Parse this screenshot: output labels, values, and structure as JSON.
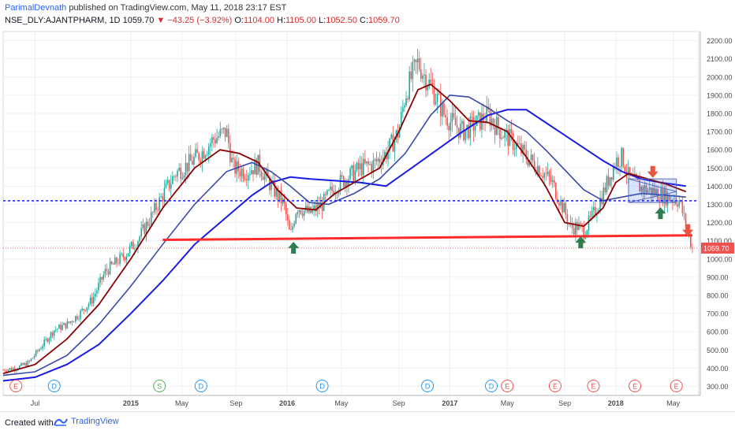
{
  "header": {
    "author": "ParimalDevnath",
    "published": " published on TradingView.com, May 11, 2018 23:17 EST",
    "symbol": "NSE_DLY:AJANTPHARM, 1D",
    "last": "1059.70",
    "change": "▼ −43.25 (−3.92%)",
    "o_label": "O:",
    "o_val": "1104.00",
    "h_label": "H:",
    "h_val": "1105.00",
    "l_label": "L:",
    "l_val": "1052.50",
    "c_label": "C:",
    "c_val": "1059.70"
  },
  "footer": {
    "created": "Created with",
    "brand": "TradingView"
  },
  "colors": {
    "up": "#26a69a",
    "down": "#ef5350",
    "ma_fast": "#8b0000",
    "ma_mid": "#3949ab",
    "ma_slow": "#1a1ae6",
    "support": "#ff2b2b",
    "level": "#1a1ae6",
    "grid": "#eef0f4",
    "axis_text": "#4a4a4a",
    "price_tag_bg": "#ef5350"
  },
  "chart_data": {
    "type": "candlestick",
    "ylim": [
      250,
      2250
    ],
    "y_ticks": [
      "300.00",
      "400.00",
      "500.00",
      "600.00",
      "700.00",
      "800.00",
      "900.00",
      "1000.00",
      "1100.00",
      "1200.00",
      "1300.00",
      "1400.00",
      "1500.00",
      "1600.00",
      "1700.00",
      "1800.00",
      "1900.00",
      "2000.00",
      "2100.00",
      "2200.00"
    ],
    "x_ticks": [
      {
        "label": "Jul",
        "t": 0.05
      },
      {
        "label": "2015",
        "t": 0.2
      },
      {
        "label": "May",
        "t": 0.28
      },
      {
        "label": "Sep",
        "t": 0.365
      },
      {
        "label": "2016",
        "t": 0.445
      },
      {
        "label": "May",
        "t": 0.53
      },
      {
        "label": "Sep",
        "t": 0.62
      },
      {
        "label": "2017",
        "t": 0.7
      },
      {
        "label": "May",
        "t": 0.79
      },
      {
        "label": "Sep",
        "t": 0.88
      },
      {
        "label": "2018",
        "t": 0.96
      },
      {
        "label": "May",
        "t": 1.05
      }
    ],
    "close_path": [
      [
        0.0,
        390
      ],
      [
        0.02,
        400
      ],
      [
        0.04,
        430
      ],
      [
        0.06,
        520
      ],
      [
        0.08,
        610
      ],
      [
        0.1,
        640
      ],
      [
        0.12,
        700
      ],
      [
        0.14,
        780
      ],
      [
        0.16,
        930
      ],
      [
        0.17,
        960
      ],
      [
        0.19,
        1020
      ],
      [
        0.21,
        1100
      ],
      [
        0.23,
        1220
      ],
      [
        0.25,
        1350
      ],
      [
        0.27,
        1470
      ],
      [
        0.29,
        1520
      ],
      [
        0.31,
        1580
      ],
      [
        0.33,
        1660
      ],
      [
        0.35,
        1700
      ],
      [
        0.36,
        1500
      ],
      [
        0.38,
        1480
      ],
      [
        0.4,
        1520
      ],
      [
        0.42,
        1400
      ],
      [
        0.44,
        1300
      ],
      [
        0.45,
        1120
      ],
      [
        0.46,
        1290
      ],
      [
        0.48,
        1250
      ],
      [
        0.5,
        1300
      ],
      [
        0.52,
        1400
      ],
      [
        0.54,
        1450
      ],
      [
        0.56,
        1500
      ],
      [
        0.58,
        1520
      ],
      [
        0.6,
        1580
      ],
      [
        0.62,
        1700
      ],
      [
        0.63,
        1900
      ],
      [
        0.64,
        2000
      ],
      [
        0.65,
        2080
      ],
      [
        0.66,
        2010
      ],
      [
        0.67,
        1950
      ],
      [
        0.68,
        1880
      ],
      [
        0.69,
        1800
      ],
      [
        0.7,
        1760
      ],
      [
        0.72,
        1700
      ],
      [
        0.74,
        1740
      ],
      [
        0.76,
        1790
      ],
      [
        0.78,
        1700
      ],
      [
        0.8,
        1640
      ],
      [
        0.82,
        1560
      ],
      [
        0.84,
        1500
      ],
      [
        0.86,
        1420
      ],
      [
        0.88,
        1260
      ],
      [
        0.89,
        1170
      ],
      [
        0.9,
        1180
      ],
      [
        0.91,
        1150
      ],
      [
        0.92,
        1210
      ],
      [
        0.93,
        1280
      ],
      [
        0.94,
        1360
      ],
      [
        0.95,
        1450
      ],
      [
        0.96,
        1540
      ],
      [
        0.97,
        1560
      ],
      [
        0.98,
        1450
      ],
      [
        0.99,
        1420
      ],
      [
        1.0,
        1390
      ],
      [
        1.02,
        1370
      ],
      [
        1.04,
        1340
      ],
      [
        1.06,
        1320
      ],
      [
        1.07,
        1180
      ],
      [
        1.08,
        1059.7
      ]
    ],
    "ma_fast": [
      [
        0.0,
        370
      ],
      [
        0.05,
        420
      ],
      [
        0.1,
        560
      ],
      [
        0.15,
        750
      ],
      [
        0.2,
        1000
      ],
      [
        0.25,
        1280
      ],
      [
        0.3,
        1500
      ],
      [
        0.34,
        1600
      ],
      [
        0.37,
        1580
      ],
      [
        0.4,
        1530
      ],
      [
        0.43,
        1380
      ],
      [
        0.46,
        1280
      ],
      [
        0.49,
        1270
      ],
      [
        0.52,
        1360
      ],
      [
        0.56,
        1440
      ],
      [
        0.59,
        1500
      ],
      [
        0.62,
        1700
      ],
      [
        0.65,
        1930
      ],
      [
        0.67,
        1960
      ],
      [
        0.7,
        1870
      ],
      [
        0.73,
        1760
      ],
      [
        0.76,
        1750
      ],
      [
        0.79,
        1700
      ],
      [
        0.82,
        1560
      ],
      [
        0.85,
        1400
      ],
      [
        0.88,
        1200
      ],
      [
        0.91,
        1180
      ],
      [
        0.94,
        1280
      ],
      [
        0.96,
        1420
      ],
      [
        0.98,
        1470
      ],
      [
        1.01,
        1440
      ],
      [
        1.04,
        1410
      ],
      [
        1.07,
        1370
      ]
    ],
    "ma_mid": [
      [
        0.0,
        360
      ],
      [
        0.05,
        380
      ],
      [
        0.1,
        470
      ],
      [
        0.15,
        640
      ],
      [
        0.2,
        850
      ],
      [
        0.25,
        1080
      ],
      [
        0.3,
        1300
      ],
      [
        0.35,
        1480
      ],
      [
        0.39,
        1530
      ],
      [
        0.42,
        1480
      ],
      [
        0.45,
        1400
      ],
      [
        0.48,
        1310
      ],
      [
        0.51,
        1300
      ],
      [
        0.55,
        1360
      ],
      [
        0.59,
        1440
      ],
      [
        0.63,
        1580
      ],
      [
        0.67,
        1790
      ],
      [
        0.7,
        1900
      ],
      [
        0.73,
        1890
      ],
      [
        0.76,
        1830
      ],
      [
        0.79,
        1760
      ],
      [
        0.82,
        1700
      ],
      [
        0.85,
        1600
      ],
      [
        0.88,
        1490
      ],
      [
        0.91,
        1380
      ],
      [
        0.94,
        1320
      ],
      [
        0.97,
        1340
      ],
      [
        1.0,
        1360
      ],
      [
        1.04,
        1350
      ],
      [
        1.07,
        1340
      ]
    ],
    "ma_slow": [
      [
        0.0,
        330
      ],
      [
        0.05,
        350
      ],
      [
        0.1,
        420
      ],
      [
        0.15,
        530
      ],
      [
        0.2,
        700
      ],
      [
        0.25,
        880
      ],
      [
        0.3,
        1080
      ],
      [
        0.35,
        1230
      ],
      [
        0.39,
        1350
      ],
      [
        0.42,
        1420
      ],
      [
        0.45,
        1450
      ],
      [
        0.48,
        1440
      ],
      [
        0.52,
        1430
      ],
      [
        0.56,
        1420
      ],
      [
        0.6,
        1400
      ],
      [
        0.64,
        1500
      ],
      [
        0.68,
        1600
      ],
      [
        0.72,
        1700
      ],
      [
        0.76,
        1790
      ],
      [
        0.79,
        1820
      ],
      [
        0.82,
        1820
      ],
      [
        0.85,
        1750
      ],
      [
        0.88,
        1680
      ],
      [
        0.91,
        1610
      ],
      [
        0.94,
        1540
      ],
      [
        0.97,
        1480
      ],
      [
        1.0,
        1440
      ],
      [
        1.03,
        1420
      ],
      [
        1.07,
        1400
      ]
    ],
    "support_line": [
      [
        0.25,
        1105
      ],
      [
        1.08,
        1130
      ]
    ],
    "level_line": 1320,
    "last_price_line": 1059.7,
    "last_price": "1059.70",
    "arrows_up": [
      [
        0.455,
        1055
      ],
      [
        0.905,
        1085
      ],
      [
        1.03,
        1245
      ]
    ],
    "arrows_down": [
      [
        1.018,
        1485
      ],
      [
        1.073,
        1165
      ]
    ],
    "triangle_box": {
      "t0": 0.98,
      "t1": 1.055,
      "y_top": 1440,
      "y_bot": 1310
    },
    "events": [
      {
        "label": "E",
        "t": 0.02,
        "type": "earnings"
      },
      {
        "label": "D",
        "t": 0.08,
        "type": "dividend"
      },
      {
        "label": "S",
        "t": 0.245,
        "type": "split"
      },
      {
        "label": "D",
        "t": 0.31,
        "type": "dividend"
      },
      {
        "label": "D",
        "t": 0.5,
        "type": "dividend"
      },
      {
        "label": "D",
        "t": 0.665,
        "type": "dividend"
      },
      {
        "label": "D",
        "t": 0.765,
        "type": "dividend"
      },
      {
        "label": "E",
        "t": 0.79,
        "type": "earnings"
      },
      {
        "label": "E",
        "t": 0.865,
        "type": "earnings"
      },
      {
        "label": "E",
        "t": 0.925,
        "type": "earnings"
      },
      {
        "label": "E",
        "t": 0.99,
        "type": "earnings"
      },
      {
        "label": "E",
        "t": 1.055,
        "type": "earnings"
      }
    ]
  }
}
